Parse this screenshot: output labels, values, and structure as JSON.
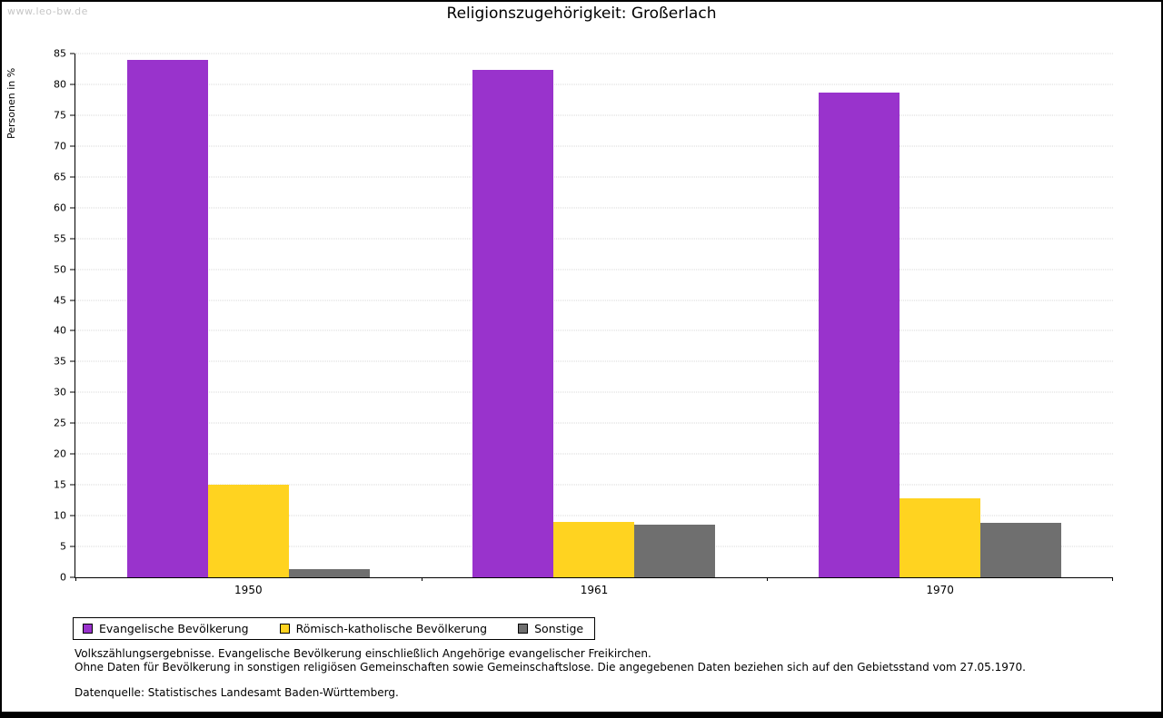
{
  "page": {
    "watermark": "www.leo-bw.de",
    "title": "Religionszugehörigkeit: Großerlach"
  },
  "chart_data": {
    "type": "bar",
    "title": "Religionszugehörigkeit: Großerlach",
    "xlabel": "",
    "ylabel": "Personen in %",
    "ylim": [
      0,
      85
    ],
    "ytick_step": 5,
    "grid": true,
    "legend_position": "bottom-left",
    "categories": [
      "1950",
      "1961",
      "1970"
    ],
    "series": [
      {
        "name": "Evangelische Bevölkerung",
        "color": "#9933cc",
        "values": [
          84.0,
          82.4,
          78.6
        ]
      },
      {
        "name": "Römisch-katholische Bevölkerung",
        "color": "#ffd320",
        "values": [
          15.0,
          9.0,
          12.8
        ]
      },
      {
        "name": "Sonstige",
        "color": "#6f6f6f",
        "values": [
          1.3,
          8.5,
          8.8
        ]
      }
    ]
  },
  "footnotes": {
    "line1": "Volkszählungsergebnisse. Evangelische Bevölkerung einschließlich Angehörige evangelischer Freikirchen.",
    "line2": "Ohne Daten für Bevölkerung in sonstigen religiösen Gemeinschaften sowie Gemeinschaftslose. Die angegebenen Daten beziehen sich auf den Gebietsstand vom 27.05.1970.",
    "source": "Datenquelle: Statistisches Landesamt Baden-Württemberg."
  }
}
